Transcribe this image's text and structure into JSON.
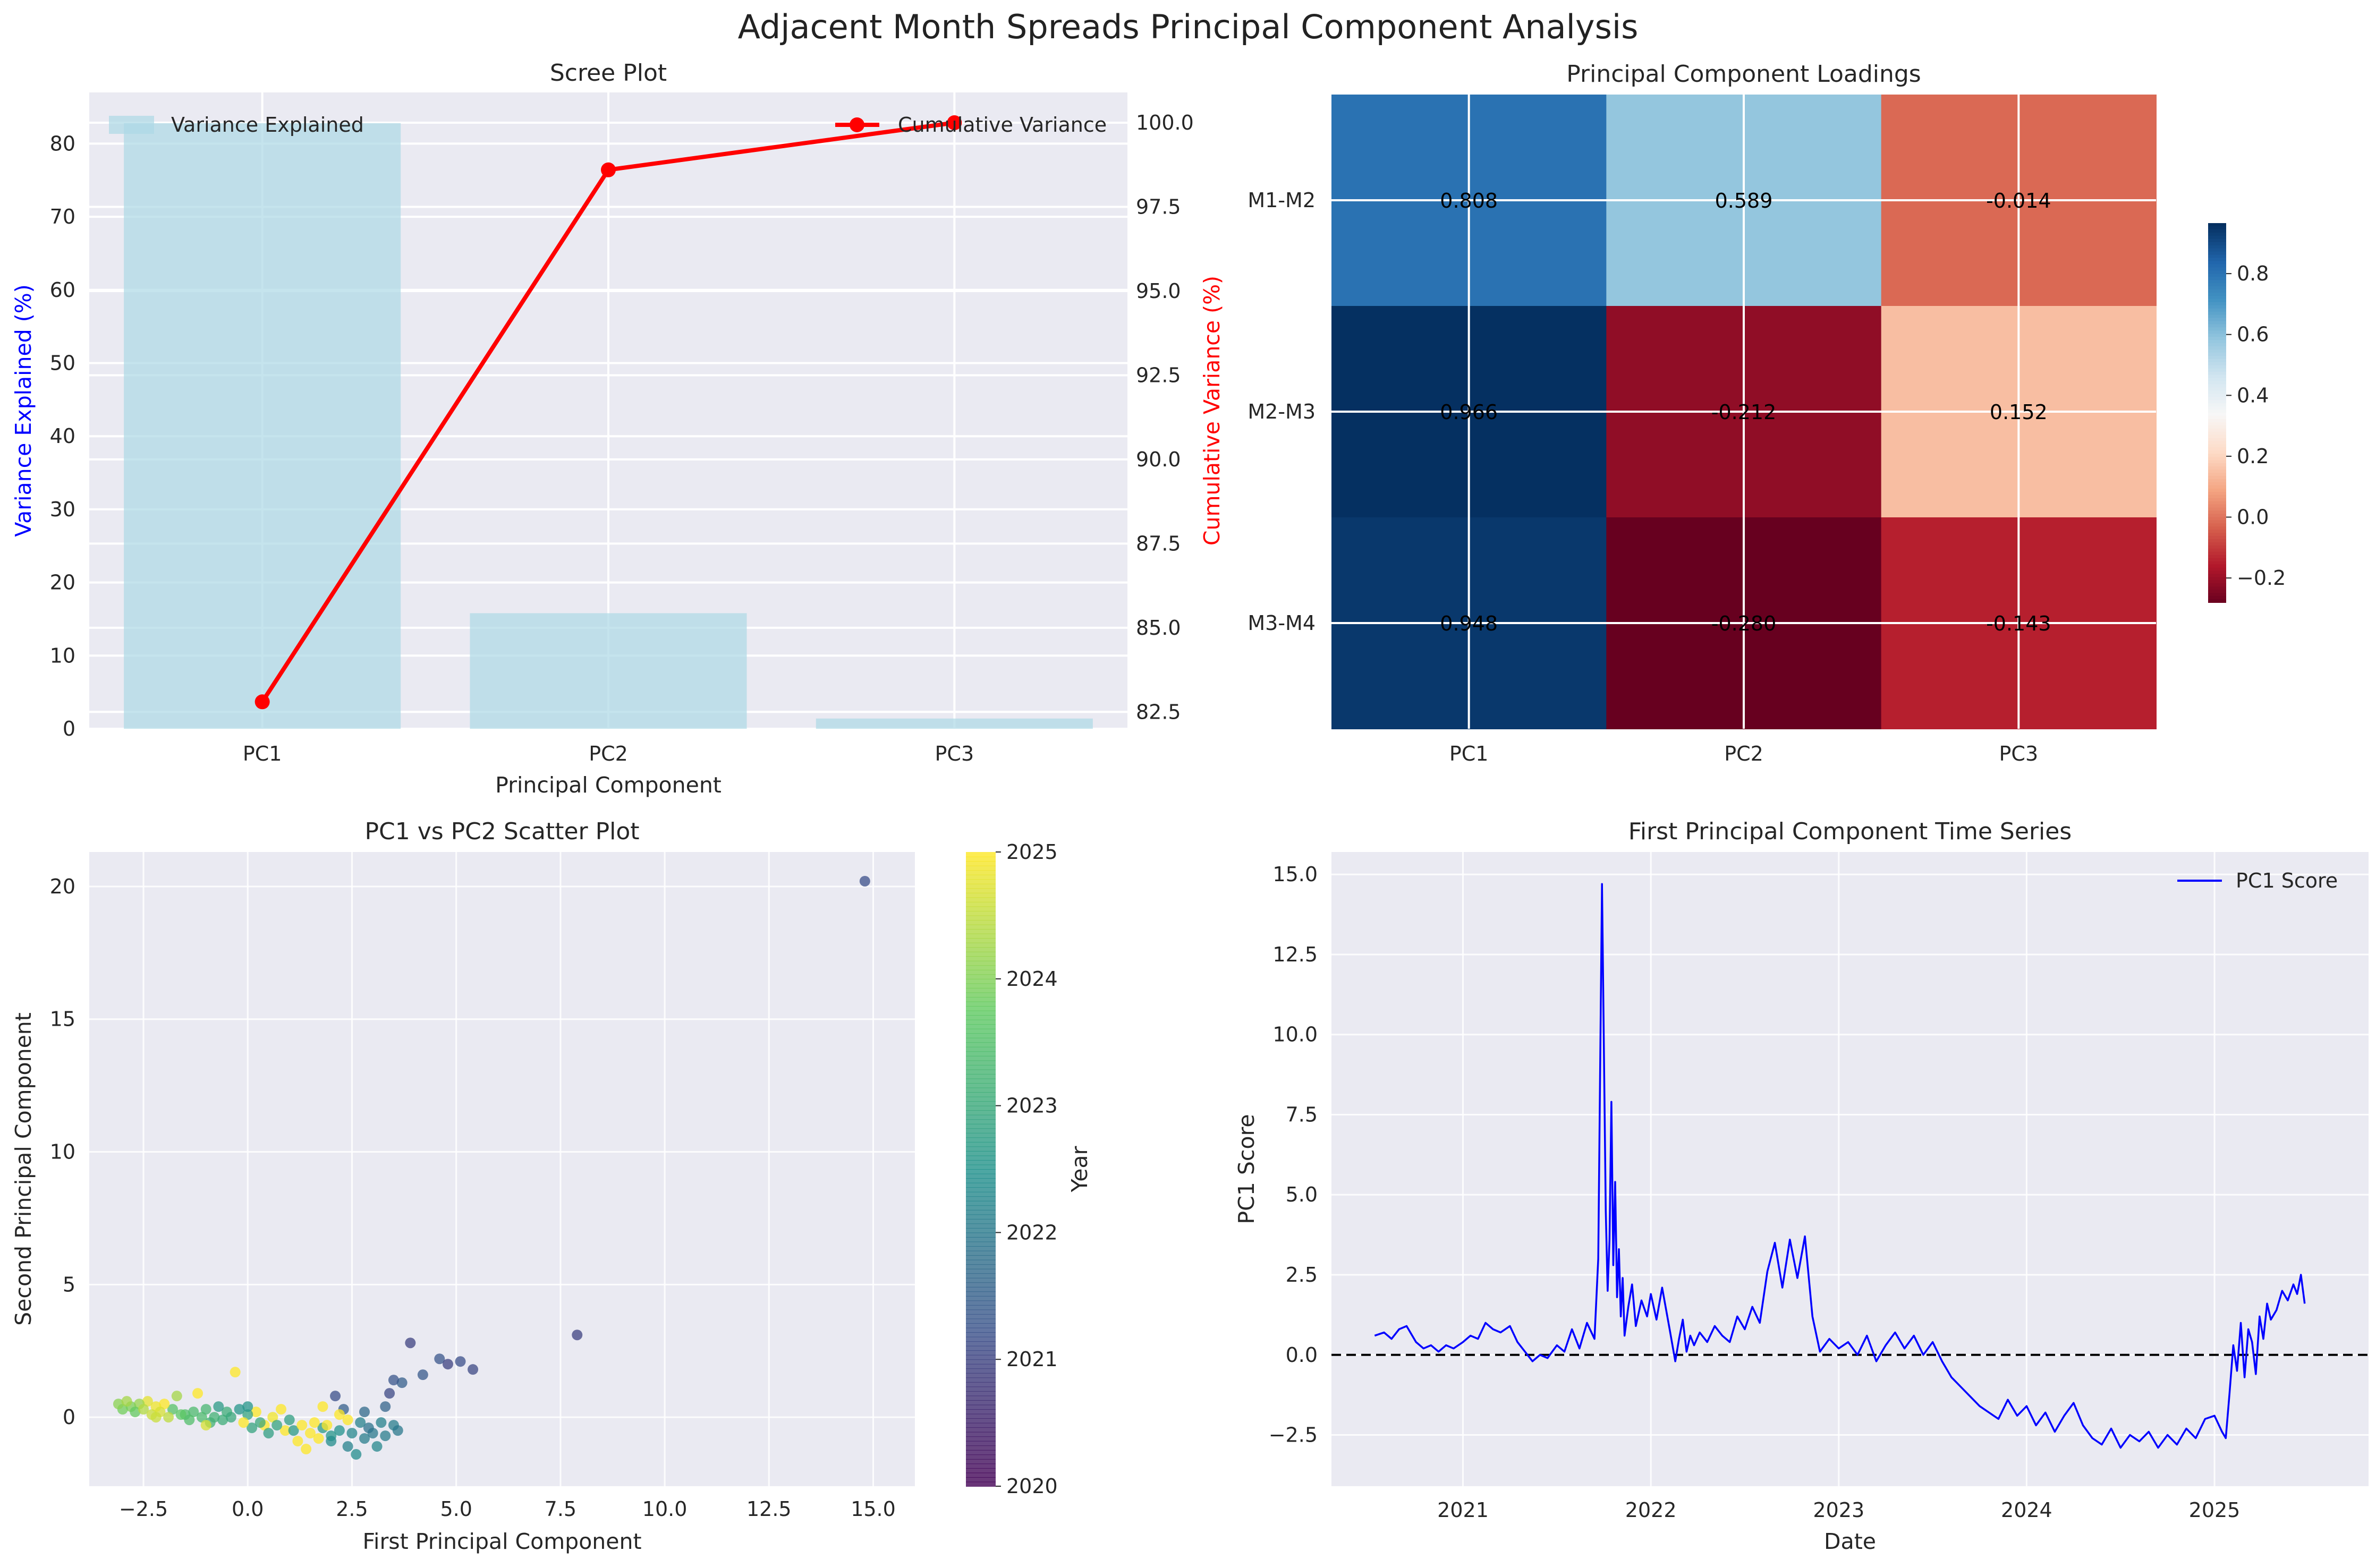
{
  "suptitle": "Adjacent Month Spreads Principal Component Analysis",
  "chart_data": [
    {
      "id": "scree",
      "type": "bar",
      "title": "Scree Plot",
      "xlabel": "Principal Component",
      "ylabel": "Variance Explained (%)",
      "y2label": "Cumulative Variance (%)",
      "categories": [
        "PC1",
        "PC2",
        "PC3"
      ],
      "series": [
        {
          "name": "Variance Explained",
          "values": [
            82.8,
            15.8,
            1.4
          ],
          "color": "#add8e6",
          "axis": "left"
        },
        {
          "name": "Cumulative Variance",
          "values": [
            82.8,
            98.6,
            100.0
          ],
          "color": "#ff0000",
          "axis": "right",
          "type": "line"
        }
      ],
      "ylim": [
        0,
        87
      ],
      "y2lim": [
        82.0,
        100.9
      ],
      "yticks": [
        0,
        10,
        20,
        30,
        40,
        50,
        60,
        70,
        80
      ],
      "y2ticks": [
        82.5,
        85.0,
        87.5,
        90.0,
        92.5,
        95.0,
        97.5,
        100.0
      ],
      "legend": [
        "top-left",
        "top-right"
      ]
    },
    {
      "id": "loadings",
      "type": "heatmap",
      "title": "Principal Component Loadings",
      "rows": [
        "M1-M2",
        "M2-M3",
        "M3-M4"
      ],
      "cols": [
        "PC1",
        "PC2",
        "PC3"
      ],
      "values": [
        [
          0.808,
          0.589,
          -0.014
        ],
        [
          0.966,
          -0.212,
          0.152
        ],
        [
          0.948,
          -0.28,
          -0.143
        ]
      ],
      "labels": [
        [
          "0.808",
          "0.589",
          "-0.014"
        ],
        [
          "0.966",
          "-0.212",
          "0.152"
        ],
        [
          "0.948",
          "-0.280",
          "-0.143"
        ]
      ],
      "colormap": "RdBu",
      "vmin": -0.28,
      "vmax": 0.966,
      "colorbar_ticks": [
        -0.2,
        0.0,
        0.2,
        0.4,
        0.6,
        0.8
      ],
      "colorbar_tick_labels": [
        "−0.2",
        "0.0",
        "0.2",
        "0.4",
        "0.6",
        "0.8"
      ]
    },
    {
      "id": "scatter",
      "type": "scatter",
      "title": "PC1 vs PC2 Scatter Plot",
      "xlabel": "First Principal Component",
      "ylabel": "Second Principal Component",
      "xlim": [
        -3.8,
        16.0
      ],
      "ylim": [
        -2.6,
        21.3
      ],
      "xticks": [
        -2.5,
        0.0,
        2.5,
        5.0,
        7.5,
        10.0,
        12.5,
        15.0
      ],
      "xtick_labels": [
        "−2.5",
        "0.0",
        "2.5",
        "5.0",
        "7.5",
        "10.0",
        "12.5",
        "15.0"
      ],
      "yticks": [
        0,
        5,
        10,
        15,
        20
      ],
      "colorbar_label": "Year",
      "colorbar_range": [
        2020,
        2025
      ],
      "colorbar_ticks": [
        2020,
        2021,
        2022,
        2023,
        2024,
        2025
      ],
      "colormap": "viridis",
      "points": [
        {
          "x": 14.8,
          "y": 20.2,
          "year": 2021.2
        },
        {
          "x": 7.9,
          "y": 3.1,
          "year": 2021.0
        },
        {
          "x": 5.4,
          "y": 1.8,
          "year": 2021.1
        },
        {
          "x": 5.1,
          "y": 2.1,
          "year": 2021.2
        },
        {
          "x": 4.6,
          "y": 2.2,
          "year": 2021.3
        },
        {
          "x": 4.8,
          "y": 2.0,
          "year": 2021.0
        },
        {
          "x": 4.2,
          "y": 1.6,
          "year": 2021.4
        },
        {
          "x": 3.9,
          "y": 2.8,
          "year": 2021.0
        },
        {
          "x": 3.7,
          "y": 1.3,
          "year": 2021.5
        },
        {
          "x": 3.5,
          "y": 1.4,
          "year": 2021.3
        },
        {
          "x": 3.4,
          "y": 0.9,
          "year": 2021.1
        },
        {
          "x": 3.3,
          "y": 0.4,
          "year": 2021.6
        },
        {
          "x": 3.2,
          "y": -0.2,
          "year": 2022.2
        },
        {
          "x": 3.1,
          "y": -1.1,
          "year": 2022.3
        },
        {
          "x": 2.8,
          "y": -0.8,
          "year": 2022.1
        },
        {
          "x": 2.6,
          "y": -1.4,
          "year": 2022.4
        },
        {
          "x": 2.4,
          "y": -1.1,
          "year": 2022.2
        },
        {
          "x": 3.0,
          "y": -0.6,
          "year": 2022.0
        },
        {
          "x": 2.2,
          "y": -0.5,
          "year": 2022.5
        },
        {
          "x": 2.0,
          "y": -0.7,
          "year": 2022.6
        },
        {
          "x": 1.8,
          "y": -0.4,
          "year": 2022.7
        },
        {
          "x": 2.1,
          "y": 0.8,
          "year": 2021.2
        },
        {
          "x": 2.3,
          "y": 0.3,
          "year": 2021.5
        },
        {
          "x": 2.8,
          "y": 0.2,
          "year": 2021.7
        },
        {
          "x": 3.5,
          "y": -0.3,
          "year": 2022.1
        },
        {
          "x": 2.9,
          "y": -0.4,
          "year": 2021.9
        },
        {
          "x": 1.5,
          "y": -0.6,
          "year": 2025.1
        },
        {
          "x": 1.2,
          "y": -0.9,
          "year": 2025.2
        },
        {
          "x": 1.4,
          "y": -1.2,
          "year": 2025.3
        },
        {
          "x": 0.9,
          "y": -0.5,
          "year": 2025.0
        },
        {
          "x": 1.6,
          "y": -0.2,
          "year": 2025.4
        },
        {
          "x": 1.9,
          "y": -0.3,
          "year": 2025.3
        },
        {
          "x": 2.2,
          "y": 0.1,
          "year": 2025.5
        },
        {
          "x": 2.4,
          "y": -0.1,
          "year": 2025.4
        },
        {
          "x": 0.4,
          "y": -0.3,
          "year": 2025.2
        },
        {
          "x": 0.2,
          "y": 0.2,
          "year": 2025.1
        },
        {
          "x": 0.6,
          "y": 0.0,
          "year": 2024.9
        },
        {
          "x": 1.0,
          "y": -0.1,
          "year": 2022.8
        },
        {
          "x": 0.7,
          "y": -0.3,
          "year": 2022.9
        },
        {
          "x": 0.3,
          "y": -0.2,
          "year": 2023.0
        },
        {
          "x": 0.0,
          "y": 0.1,
          "year": 2022.9
        },
        {
          "x": -0.2,
          "y": 0.3,
          "year": 2022.6
        },
        {
          "x": -0.5,
          "y": 0.2,
          "year": 2023.1
        },
        {
          "x": -0.8,
          "y": 0.0,
          "year": 2023.2
        },
        {
          "x": -1.0,
          "y": 0.3,
          "year": 2023.3
        },
        {
          "x": -1.3,
          "y": 0.2,
          "year": 2023.4
        },
        {
          "x": -1.5,
          "y": 0.1,
          "year": 2023.5
        },
        {
          "x": -1.8,
          "y": 0.3,
          "year": 2023.6
        },
        {
          "x": -0.3,
          "y": 1.7,
          "year": 2025.0
        },
        {
          "x": -1.2,
          "y": 0.9,
          "year": 2025.1
        },
        {
          "x": -1.7,
          "y": 0.8,
          "year": 2024.3
        },
        {
          "x": -2.0,
          "y": 0.5,
          "year": 2025.0
        },
        {
          "x": -2.2,
          "y": 0.4,
          "year": 2024.9
        },
        {
          "x": -2.4,
          "y": 0.6,
          "year": 2024.8
        },
        {
          "x": -2.6,
          "y": 0.5,
          "year": 2024.2
        },
        {
          "x": -2.8,
          "y": 0.4,
          "year": 2024.0
        },
        {
          "x": -3.0,
          "y": 0.3,
          "year": 2023.9
        },
        {
          "x": -3.1,
          "y": 0.5,
          "year": 2024.1
        },
        {
          "x": -2.9,
          "y": 0.6,
          "year": 2024.3
        },
        {
          "x": -2.7,
          "y": 0.2,
          "year": 2023.8
        },
        {
          "x": -2.5,
          "y": 0.3,
          "year": 2024.4
        },
        {
          "x": -2.3,
          "y": 0.1,
          "year": 2024.6
        },
        {
          "x": -2.1,
          "y": 0.2,
          "year": 2024.7
        },
        {
          "x": -1.9,
          "y": 0.0,
          "year": 2024.5
        },
        {
          "x": -1.6,
          "y": 0.1,
          "year": 2023.7
        },
        {
          "x": -1.4,
          "y": -0.1,
          "year": 2023.5
        },
        {
          "x": -1.1,
          "y": 0.0,
          "year": 2023.4
        },
        {
          "x": -0.9,
          "y": -0.2,
          "year": 2023.2
        },
        {
          "x": -0.6,
          "y": -0.1,
          "year": 2023.1
        },
        {
          "x": -0.4,
          "y": 0.0,
          "year": 2023.0
        },
        {
          "x": 0.1,
          "y": -0.4,
          "year": 2022.9
        },
        {
          "x": 0.5,
          "y": -0.6,
          "year": 2022.8
        },
        {
          "x": 1.1,
          "y": -0.5,
          "year": 2022.7
        },
        {
          "x": 1.3,
          "y": -0.3,
          "year": 2025.3
        },
        {
          "x": 1.7,
          "y": -0.8,
          "year": 2025.2
        },
        {
          "x": 2.0,
          "y": -0.9,
          "year": 2022.4
        },
        {
          "x": 2.5,
          "y": -0.6,
          "year": 2022.3
        },
        {
          "x": 2.7,
          "y": -0.2,
          "year": 2022.2
        },
        {
          "x": 3.3,
          "y": -0.7,
          "year": 2022.1
        },
        {
          "x": 3.6,
          "y": -0.5,
          "year": 2022.0
        },
        {
          "x": -0.1,
          "y": -0.2,
          "year": 2025.3
        },
        {
          "x": 0.8,
          "y": 0.3,
          "year": 2025.4
        },
        {
          "x": 1.8,
          "y": 0.4,
          "year": 2025.5
        },
        {
          "x": -2.2,
          "y": 0.0,
          "year": 2024.6
        },
        {
          "x": -1.0,
          "y": -0.3,
          "year": 2024.7
        },
        {
          "x": 0.0,
          "y": 0.4,
          "year": 2022.6
        },
        {
          "x": -0.7,
          "y": 0.4,
          "year": 2022.7
        }
      ]
    },
    {
      "id": "timeseries",
      "type": "line",
      "title": "First Principal Component Time Series",
      "xlabel": "Date",
      "ylabel": "PC1 Score",
      "xlim": [
        2020.3,
        2025.82
      ],
      "ylim": [
        -4.1,
        15.7
      ],
      "xticks": [
        2021,
        2022,
        2023,
        2024,
        2025
      ],
      "yticks": [
        -2.5,
        0.0,
        2.5,
        5.0,
        7.5,
        10.0,
        12.5,
        15.0
      ],
      "ytick_labels": [
        "−2.5",
        "0.0",
        "2.5",
        "5.0",
        "7.5",
        "10.0",
        "12.5",
        "15.0"
      ],
      "reference_line": 0,
      "series": [
        {
          "name": "PC1 Score",
          "color": "#0000ff",
          "x": [
            2020.53,
            2020.58,
            2020.62,
            2020.66,
            2020.7,
            2020.75,
            2020.79,
            2020.83,
            2020.87,
            2020.91,
            2020.95,
            2021.0,
            2021.04,
            2021.08,
            2021.12,
            2021.16,
            2021.2,
            2021.25,
            2021.29,
            2021.33,
            2021.37,
            2021.41,
            2021.45,
            2021.5,
            2021.54,
            2021.58,
            2021.62,
            2021.66,
            2021.7,
            2021.72,
            2021.74,
            2021.76,
            2021.77,
            2021.78,
            2021.79,
            2021.8,
            2021.81,
            2021.82,
            2021.83,
            2021.84,
            2021.85,
            2021.86,
            2021.88,
            2021.9,
            2021.92,
            2021.95,
            2021.98,
            2022.0,
            2022.03,
            2022.06,
            2022.1,
            2022.13,
            2022.15,
            2022.17,
            2022.19,
            2022.21,
            2022.23,
            2022.26,
            2022.3,
            2022.34,
            2022.38,
            2022.42,
            2022.46,
            2022.5,
            2022.54,
            2022.58,
            2022.62,
            2022.66,
            2022.7,
            2022.74,
            2022.78,
            2022.82,
            2022.86,
            2022.9,
            2022.95,
            2023.0,
            2023.05,
            2023.1,
            2023.15,
            2023.2,
            2023.25,
            2023.3,
            2023.35,
            2023.4,
            2023.45,
            2023.5,
            2023.55,
            2023.6,
            2023.65,
            2023.7,
            2023.75,
            2023.8,
            2023.85,
            2023.9,
            2023.95,
            2024.0,
            2024.05,
            2024.1,
            2024.15,
            2024.2,
            2024.25,
            2024.3,
            2024.35,
            2024.4,
            2024.45,
            2024.5,
            2024.55,
            2024.6,
            2024.65,
            2024.7,
            2024.75,
            2024.8,
            2024.85,
            2024.9,
            2024.95,
            2025.0,
            2025.04,
            2025.06,
            2025.08,
            2025.1,
            2025.12,
            2025.14,
            2025.16,
            2025.18,
            2025.2,
            2025.22,
            2025.24,
            2025.26,
            2025.28,
            2025.3,
            2025.33,
            2025.36,
            2025.39,
            2025.42,
            2025.44,
            2025.46,
            2025.48
          ],
          "y": [
            0.6,
            0.7,
            0.5,
            0.8,
            0.9,
            0.4,
            0.2,
            0.3,
            0.1,
            0.3,
            0.2,
            0.4,
            0.6,
            0.5,
            1.0,
            0.8,
            0.7,
            0.9,
            0.4,
            0.1,
            -0.2,
            0.0,
            -0.1,
            0.3,
            0.1,
            0.8,
            0.2,
            1.0,
            0.5,
            3.0,
            14.7,
            4.5,
            2.0,
            3.6,
            7.9,
            2.8,
            5.4,
            1.8,
            3.3,
            1.2,
            2.4,
            0.6,
            1.5,
            2.2,
            0.9,
            1.7,
            1.2,
            1.9,
            1.1,
            2.1,
            0.8,
            -0.2,
            0.5,
            1.1,
            0.1,
            0.6,
            0.3,
            0.7,
            0.4,
            0.9,
            0.6,
            0.4,
            1.2,
            0.8,
            1.5,
            1.0,
            2.6,
            3.5,
            2.1,
            3.6,
            2.4,
            3.7,
            1.2,
            0.1,
            0.5,
            0.2,
            0.4,
            0.0,
            0.6,
            -0.2,
            0.3,
            0.7,
            0.2,
            0.6,
            0.0,
            0.4,
            -0.2,
            -0.7,
            -1.0,
            -1.3,
            -1.6,
            -1.8,
            -2.0,
            -1.4,
            -1.9,
            -1.6,
            -2.2,
            -1.8,
            -2.4,
            -1.9,
            -1.5,
            -2.2,
            -2.6,
            -2.8,
            -2.3,
            -2.9,
            -2.5,
            -2.7,
            -2.4,
            -2.9,
            -2.5,
            -2.8,
            -2.3,
            -2.6,
            -2.0,
            -1.9,
            -2.4,
            -2.6,
            -1.2,
            0.3,
            -0.5,
            1.0,
            -0.7,
            0.8,
            0.4,
            -0.6,
            1.2,
            0.5,
            1.6,
            1.1,
            1.4,
            2.0,
            1.7,
            2.2,
            1.9,
            2.5,
            1.6
          ]
        }
      ],
      "legend": "top-right"
    }
  ]
}
